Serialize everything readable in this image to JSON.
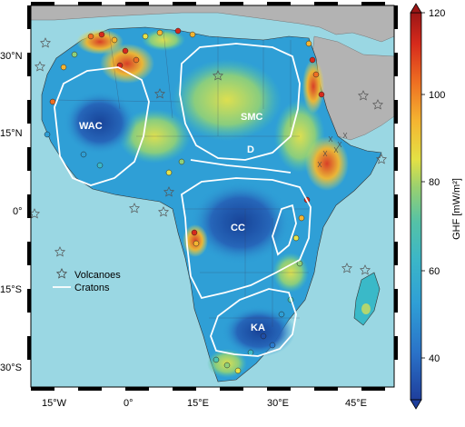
{
  "map": {
    "x_ticks": [
      "15°W",
      "0°",
      "15°E",
      "30°E",
      "45°E"
    ],
    "y_ticks": [
      "30°N",
      "15°N",
      "0°",
      "15°S",
      "30°S"
    ],
    "cratons": [
      "WAC",
      "SMC",
      "D",
      "CC",
      "KA"
    ],
    "legend": {
      "volcanoes": "Volcanoes",
      "cratons": "Cratons"
    }
  },
  "colorbar": {
    "title": "GHF [mW/m²]",
    "ticks": [
      "120",
      "100",
      "80",
      "60",
      "40"
    ],
    "min": 30,
    "max": 120,
    "colors": [
      "#1f4ea8",
      "#2a7bd0",
      "#2f9fd6",
      "#3ab9c8",
      "#4cc3b0",
      "#8fd07a",
      "#e6e34a",
      "#f5b531",
      "#ee6f22",
      "#d62a1c",
      "#a41a17"
    ]
  },
  "colors": {
    "ocean": "#9ad7e3",
    "land_other": "#b3b3b3",
    "africa_base": "#2f9fd6",
    "craton_outline": "#ffffff"
  }
}
